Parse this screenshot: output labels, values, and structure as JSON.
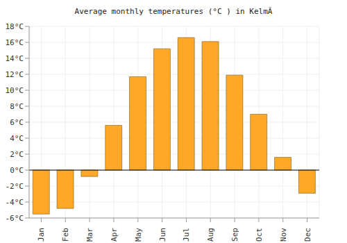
{
  "chart_data": {
    "type": "bar",
    "title": "Average monthly temperatures (°C ) in KelmÃ",
    "categories": [
      "Jan",
      "Feb",
      "Mar",
      "Apr",
      "May",
      "Jun",
      "Jul",
      "Aug",
      "Sep",
      "Oct",
      "Nov",
      "Dec"
    ],
    "values": [
      -5.5,
      -4.8,
      -0.8,
      5.6,
      11.7,
      15.2,
      16.6,
      16.1,
      11.9,
      7.0,
      1.6,
      -2.9
    ],
    "color": "#ffa726",
    "ylim": [
      -6,
      18
    ],
    "yticks": [
      {
        "value": -6,
        "label": "-6°C"
      },
      {
        "value": -4,
        "label": "-4°C"
      },
      {
        "value": -2,
        "label": "-2°C"
      },
      {
        "value": 0,
        "label": "0°C"
      },
      {
        "value": 2,
        "label": "2°C"
      },
      {
        "value": 4,
        "label": "4°C"
      },
      {
        "value": 6,
        "label": "6°C"
      },
      {
        "value": 8,
        "label": "8°C"
      },
      {
        "value": 10,
        "label": "10°C"
      },
      {
        "value": 12,
        "label": "12°C"
      },
      {
        "value": 14,
        "label": "14°C"
      },
      {
        "value": 16,
        "label": "16°C"
      },
      {
        "value": 18,
        "label": "18°C"
      }
    ],
    "grid": true
  }
}
